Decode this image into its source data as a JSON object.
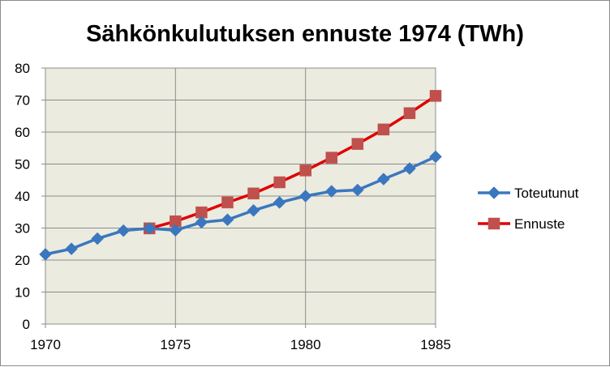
{
  "chart_data": {
    "type": "line",
    "title": "Sähkönkulutuksen ennuste 1974 (TWh)",
    "xlabel": "",
    "ylabel": "",
    "xlim": [
      1970,
      1985
    ],
    "ylim": [
      0,
      80
    ],
    "x_ticks": [
      1970,
      1975,
      1980,
      1985
    ],
    "y_ticks": [
      0,
      10,
      20,
      30,
      40,
      50,
      60,
      70,
      80
    ],
    "grid": true,
    "legend_position": "right",
    "plot_background": "#ecebdf",
    "series": [
      {
        "name": "Toteutunut",
        "color": "#3a77bf",
        "marker": "diamond",
        "x": [
          1970,
          1971,
          1972,
          1973,
          1974,
          1975,
          1976,
          1977,
          1978,
          1979,
          1980,
          1981,
          1982,
          1983,
          1984,
          1985
        ],
        "y": [
          21.8,
          23.5,
          26.7,
          29.2,
          29.9,
          29.3,
          31.8,
          32.6,
          35.5,
          38.0,
          40.0,
          41.5,
          41.9,
          45.3,
          48.6,
          52.3
        ]
      },
      {
        "name": "Ennuste",
        "color": "#c0504d",
        "line_color": "#e00000",
        "marker": "square",
        "x": [
          1974,
          1975,
          1976,
          1977,
          1978,
          1979,
          1980,
          1981,
          1982,
          1983,
          1984,
          1985
        ],
        "y": [
          29.9,
          32.1,
          34.9,
          38.0,
          40.8,
          44.3,
          48.0,
          52.0,
          56.3,
          60.8,
          65.9,
          71.3
        ]
      }
    ]
  }
}
